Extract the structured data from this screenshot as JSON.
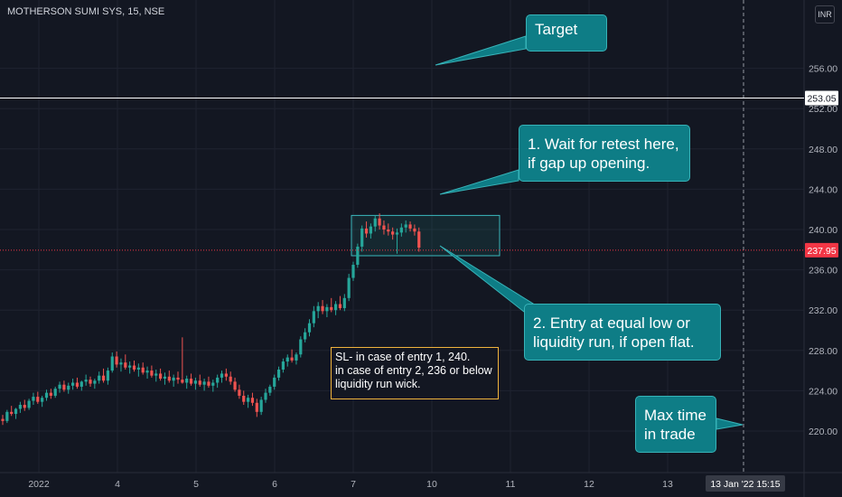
{
  "header": {
    "symbol_title": "MOTHERSON SUMI SYS, 15, NSE",
    "currency_button": "INR"
  },
  "chart_data": {
    "type": "candlestick",
    "title": "MOTHERSON SUMI SYS, 15, NSE",
    "ylim": [
      217.5,
      257.5
    ],
    "y_ticks": [
      220,
      224,
      228,
      232,
      236,
      240,
      244,
      248,
      252,
      256
    ],
    "x_ticks": [
      "2022",
      "4",
      "5",
      "6",
      "7",
      "10",
      "11",
      "12",
      "13"
    ],
    "price_lines": [
      {
        "label": "253.05",
        "value": 253.05,
        "style": "solid",
        "color": "#ffffff"
      },
      {
        "label": "237.95",
        "value": 237.95,
        "style": "dotted",
        "color": "#f23645"
      }
    ],
    "crosshair": {
      "date_label": "13 Jan '22",
      "time_label": "15:15"
    },
    "zone": {
      "top": 241.4,
      "bottom": 237.4,
      "from": "7",
      "to": "10"
    },
    "series": [
      {
        "segment": "2022 session",
        "candles": [
          [
            221.2,
            221.6,
            220.6,
            221.0
          ],
          [
            221.0,
            222.1,
            220.8,
            221.9
          ],
          [
            221.9,
            222.5,
            221.5,
            221.7
          ],
          [
            221.7,
            222.3,
            221.2,
            222.2
          ],
          [
            222.2,
            222.9,
            221.8,
            222.6
          ],
          [
            222.6,
            223.1,
            222.0,
            222.3
          ],
          [
            222.3,
            223.2,
            222.1,
            223.0
          ],
          [
            223.0,
            223.8,
            222.6,
            223.4
          ],
          [
            223.4,
            223.9,
            222.7,
            222.9
          ],
          [
            222.9,
            223.5,
            222.4,
            223.3
          ],
          [
            223.3,
            224.1,
            223.0,
            223.8
          ],
          [
            223.8,
            224.2,
            223.2,
            223.5
          ],
          [
            223.5,
            224.4,
            223.3,
            224.2
          ],
          [
            224.2,
            224.9,
            223.8,
            224.6
          ],
          [
            224.6,
            225.0,
            223.9,
            224.1
          ],
          [
            224.1,
            224.8,
            223.7,
            224.5
          ],
          [
            224.5,
            225.2,
            224.1,
            224.8
          ],
          [
            224.8,
            225.3,
            224.2,
            224.4
          ],
          [
            224.4,
            225.0,
            224.0,
            224.9
          ],
          [
            224.9,
            225.6,
            224.5,
            225.1
          ],
          [
            225.1,
            225.4,
            224.4,
            224.7
          ],
          [
            224.7,
            225.2,
            224.2,
            225.0
          ],
          [
            225.0,
            225.9,
            224.7,
            225.5
          ],
          [
            225.5,
            226.2,
            224.8,
            225.0
          ]
        ]
      },
      {
        "segment": "4 session",
        "candles": [
          [
            225.0,
            226.3,
            224.6,
            226.0
          ],
          [
            226.0,
            227.8,
            225.8,
            227.4
          ],
          [
            227.4,
            227.9,
            226.3,
            226.6
          ],
          [
            226.6,
            227.2,
            225.9,
            226.8
          ],
          [
            226.8,
            227.6,
            226.1,
            226.3
          ],
          [
            226.3,
            226.9,
            225.7,
            226.5
          ],
          [
            226.5,
            227.0,
            225.9,
            226.1
          ],
          [
            226.1,
            226.7,
            225.4,
            226.3
          ],
          [
            226.3,
            226.8,
            225.6,
            225.8
          ],
          [
            225.8,
            226.4,
            225.2,
            226.0
          ],
          [
            226.0,
            226.5,
            225.3,
            225.5
          ],
          [
            225.5,
            226.1,
            224.9,
            225.7
          ],
          [
            225.7,
            226.2,
            225.0,
            225.2
          ],
          [
            225.2,
            225.8,
            224.6,
            225.4
          ],
          [
            225.4,
            226.0,
            224.8,
            225.0
          ],
          [
            225.0,
            225.6,
            224.4,
            225.3
          ],
          [
            225.3,
            225.9,
            224.7,
            225.1
          ],
          [
            225.1,
            229.3,
            224.7,
            224.8
          ],
          [
            224.8,
            225.5,
            224.2,
            225.2
          ],
          [
            225.2,
            225.7,
            224.5,
            224.7
          ],
          [
            224.7,
            225.3,
            224.1,
            225.0
          ],
          [
            225.0,
            225.6,
            224.4,
            224.6
          ],
          [
            224.6,
            225.2,
            224.0,
            224.9
          ],
          [
            224.9,
            225.4,
            224.3,
            224.5
          ]
        ]
      },
      {
        "segment": "5 session",
        "candles": [
          [
            224.5,
            225.1,
            223.9,
            224.8
          ],
          [
            224.8,
            225.6,
            224.3,
            225.3
          ],
          [
            225.3,
            226.0,
            224.8,
            225.7
          ],
          [
            225.7,
            226.2,
            225.0,
            225.4
          ],
          [
            225.4,
            225.9,
            224.6,
            224.9
          ],
          [
            224.9,
            225.3,
            223.9,
            224.1
          ],
          [
            224.1,
            224.6,
            223.2,
            223.5
          ],
          [
            223.5,
            224.0,
            222.6,
            222.9
          ],
          [
            222.9,
            223.6,
            222.3,
            223.3
          ],
          [
            223.3,
            223.8,
            222.5,
            222.8
          ],
          [
            222.8,
            223.2,
            221.4,
            221.9
          ],
          [
            221.9,
            223.4,
            221.6,
            223.1
          ],
          [
            223.1,
            224.2,
            222.8,
            223.8
          ],
          [
            223.8,
            224.6,
            223.5,
            224.4
          ],
          [
            224.4,
            225.6,
            224.1,
            225.3
          ],
          [
            225.3,
            226.4,
            225.0,
            226.1
          ],
          [
            226.1,
            227.2,
            225.8,
            226.9
          ],
          [
            226.9,
            227.6,
            226.4,
            227.3
          ],
          [
            227.3,
            228.1,
            226.8,
            227.0
          ],
          [
            227.0,
            227.8,
            226.6,
            227.6
          ],
          [
            227.6,
            229.4,
            227.3,
            229.1
          ],
          [
            229.1,
            230.2,
            228.8,
            229.8
          ],
          [
            229.8,
            231.1,
            229.4,
            230.7
          ],
          [
            230.7,
            232.4,
            230.3,
            231.9
          ]
        ]
      },
      {
        "segment": "6 session",
        "candles": [
          [
            231.9,
            232.8,
            231.2,
            232.4
          ],
          [
            232.4,
            233.0,
            231.6,
            231.9
          ],
          [
            231.9,
            232.6,
            231.3,
            232.3
          ],
          [
            232.3,
            233.2,
            231.8,
            232.0
          ],
          [
            232.0,
            232.9,
            231.5,
            232.6
          ],
          [
            232.6,
            233.4,
            232.0,
            232.2
          ],
          [
            232.2,
            233.6,
            231.9,
            233.2
          ],
          [
            233.2,
            235.6,
            232.9,
            235.2
          ],
          [
            235.2,
            236.8,
            234.9,
            236.5
          ],
          [
            236.5,
            238.6,
            236.2,
            238.3
          ],
          [
            238.3,
            240.4,
            237.8,
            240.1
          ],
          [
            240.1,
            240.8,
            239.2,
            239.6
          ],
          [
            239.6,
            240.6,
            239.1,
            240.3
          ],
          [
            240.3,
            241.4,
            239.8,
            241.1
          ],
          [
            241.1,
            241.6,
            240.0,
            240.4
          ],
          [
            240.4,
            240.9,
            239.5,
            240.0
          ],
          [
            240.0,
            240.6,
            239.4,
            239.8
          ],
          [
            239.8,
            240.2,
            239.0,
            239.5
          ],
          [
            239.5,
            240.1,
            237.6,
            239.7
          ],
          [
            239.7,
            240.6,
            239.3,
            240.2
          ],
          [
            240.2,
            240.9,
            239.7,
            240.5
          ],
          [
            240.5,
            240.8,
            239.8,
            240.1
          ],
          [
            240.1,
            240.5,
            239.4,
            239.8
          ],
          [
            239.8,
            240.2,
            237.8,
            238.2
          ]
        ]
      }
    ]
  },
  "annotations": {
    "target": "Target",
    "wait": [
      "1. Wait for retest here,",
      "if gap up opening."
    ],
    "entry": [
      "2. Entry at equal low or",
      "liquidity run, if open flat."
    ],
    "max_time": [
      "Max time",
      "in trade"
    ],
    "stop_loss": [
      "SL- in case of entry 1, 240.",
      "in case of entry 2, 236 or below",
      "liquidity run wick."
    ]
  },
  "colors": {
    "background": "#131722",
    "up": "#26a69a",
    "down": "#ef5350",
    "callout": "#0e7d86",
    "sl_border": "#f0b33c",
    "price_badge": "#f23645"
  }
}
